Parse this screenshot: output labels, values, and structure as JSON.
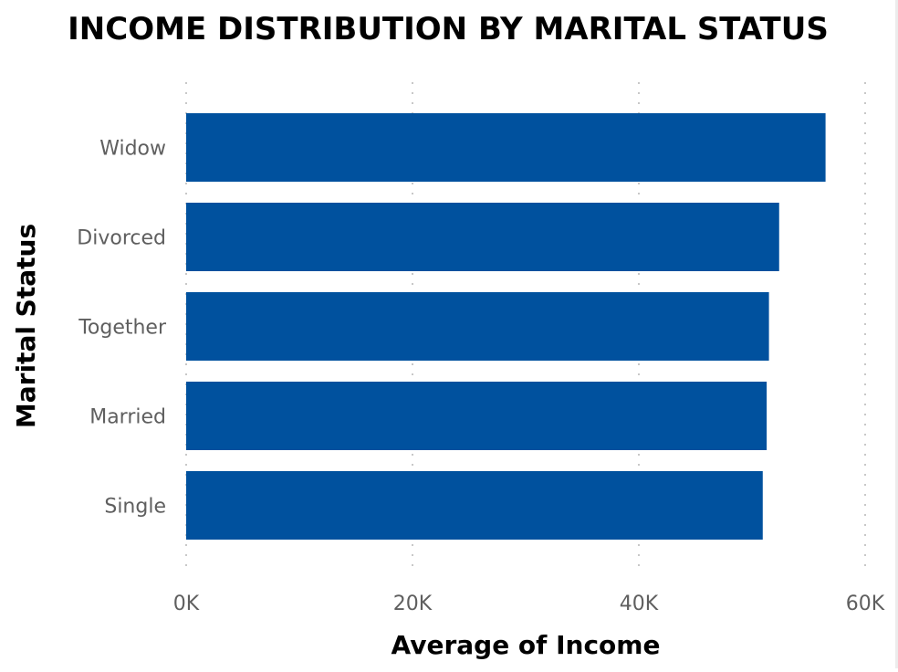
{
  "chart_data": {
    "type": "bar",
    "orientation": "horizontal",
    "title": "INCOME DISTRIBUTION BY MARITAL STATUS",
    "xlabel": "Average of Income",
    "ylabel": "Marital Status",
    "categories": [
      "Widow",
      "Divorced",
      "Together",
      "Married",
      "Single"
    ],
    "values": [
      56500,
      52400,
      51500,
      51300,
      50950
    ],
    "xlim": [
      0,
      60000
    ],
    "x_ticks": [
      0,
      20000,
      40000,
      60000
    ],
    "x_tick_labels": [
      "0K",
      "20K",
      "40K",
      "60K"
    ],
    "grid": "vertical dotted",
    "bar_color": "#00519e"
  }
}
